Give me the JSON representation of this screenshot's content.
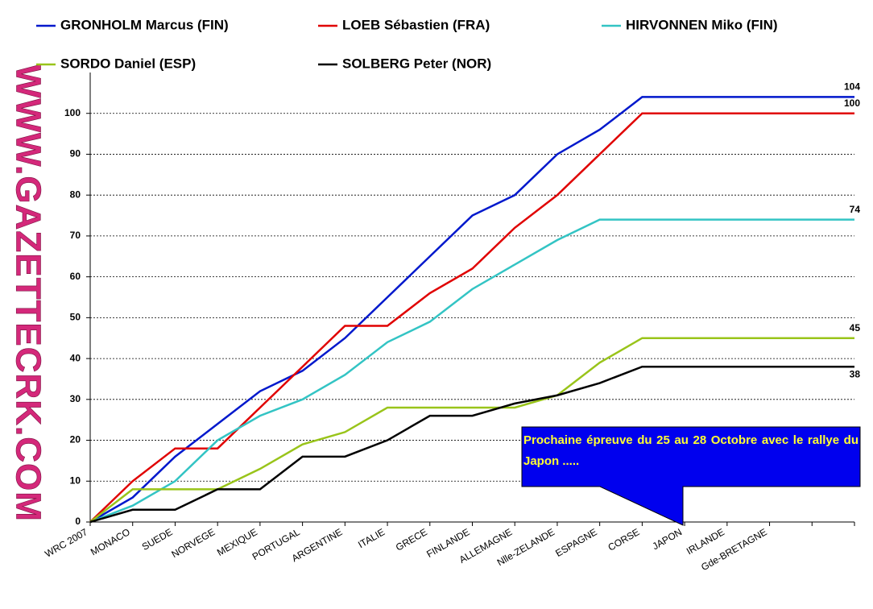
{
  "chart_data": {
    "type": "line",
    "categories": [
      "WRC 2007",
      "MONACO",
      "SUEDE",
      "NORVEGE",
      "MEXIQUE",
      "PORTUGAL",
      "ARGENTINE",
      "ITALIE",
      "GRECE",
      "FINLANDE",
      "ALLEMAGNE",
      "Nlle-ZELANDE",
      "ESPAGNE",
      "CORSE",
      "JAPON",
      "IRLANDE",
      "Gde-BRETAGNE",
      null,
      null
    ],
    "series": [
      {
        "name": "GRONHOLM Marcus (FIN)",
        "color": "#0018cc",
        "values": [
          0,
          6,
          16,
          24,
          32,
          37,
          45,
          55,
          65,
          75,
          80,
          90,
          96,
          104,
          104,
          104,
          104,
          104,
          104
        ]
      },
      {
        "name": "LOEB Sébastien (FRA)",
        "color": "#e00000",
        "values": [
          0,
          10,
          18,
          18,
          28,
          38,
          48,
          48,
          56,
          62,
          72,
          80,
          90,
          100,
          100,
          100,
          100,
          100,
          100
        ]
      },
      {
        "name": "HIRVONNEN Miko (FIN)",
        "color": "#33c4c4",
        "values": [
          0,
          4,
          10,
          20,
          26,
          30,
          36,
          44,
          49,
          57,
          63,
          69,
          74,
          74,
          74,
          74,
          74,
          74,
          74
        ]
      },
      {
        "name": "SORDO Daniel (ESP)",
        "color": "#99c41a",
        "values": [
          0,
          8,
          8,
          8,
          13,
          19,
          22,
          28,
          28,
          28,
          28,
          31,
          39,
          45,
          45,
          45,
          45,
          45,
          45
        ]
      },
      {
        "name": "SOLBERG Peter (NOR)",
        "color": "#000000",
        "values": [
          0,
          3,
          3,
          8,
          8,
          16,
          16,
          20,
          26,
          26,
          29,
          31,
          34,
          38,
          38,
          38,
          38,
          38,
          38
        ]
      }
    ],
    "ylim": [
      0,
      110
    ],
    "yticks": [
      0,
      10,
      20,
      30,
      40,
      50,
      60,
      70,
      80,
      90,
      100
    ],
    "grid": true,
    "legend": "top",
    "annotation": "Prochaine épreuve du 25 au 28 Octobre avec le rallye du Japon .....",
    "watermark": "WWW.GAZETTECRK.COM"
  }
}
